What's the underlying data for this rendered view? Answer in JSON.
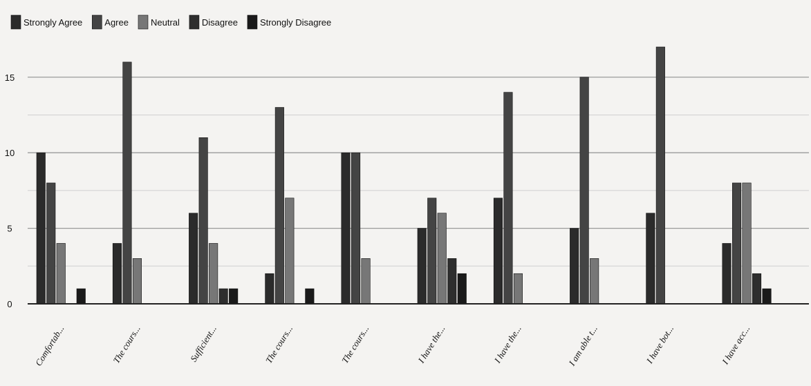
{
  "chart_data": {
    "type": "bar",
    "title": "",
    "xlabel": "",
    "ylabel": "",
    "ylim": [
      0,
      17
    ],
    "y_ticks": [
      0,
      5,
      10,
      15
    ],
    "grid": true,
    "legend_position": "top-left",
    "categories": [
      "Comfortab...",
      "The cours...",
      "Sufficient...",
      "The cours...",
      "The cours...",
      "I have the...",
      "I have the...",
      "I am able t...",
      "I have bot...",
      "I have acc..."
    ],
    "series": [
      {
        "name": "Strongly Agree",
        "color": "#2b2b2b",
        "values": [
          10,
          4,
          6,
          2,
          10,
          5,
          7,
          5,
          6,
          4
        ]
      },
      {
        "name": "Agree",
        "color": "#444444",
        "values": [
          8,
          16,
          11,
          13,
          10,
          7,
          14,
          15,
          17,
          8
        ]
      },
      {
        "name": "Neutral",
        "color": "#777777",
        "values": [
          4,
          3,
          4,
          7,
          3,
          6,
          2,
          3,
          0,
          8
        ]
      },
      {
        "name": "Disagree",
        "color": "#2e2e2e",
        "values": [
          0,
          0,
          1,
          0,
          0,
          3,
          0,
          0,
          0,
          2
        ]
      },
      {
        "name": "Strongly Disagree",
        "color": "#1a1a1a",
        "values": [
          1,
          0,
          1,
          1,
          0,
          2,
          0,
          0,
          0,
          1
        ]
      }
    ]
  }
}
